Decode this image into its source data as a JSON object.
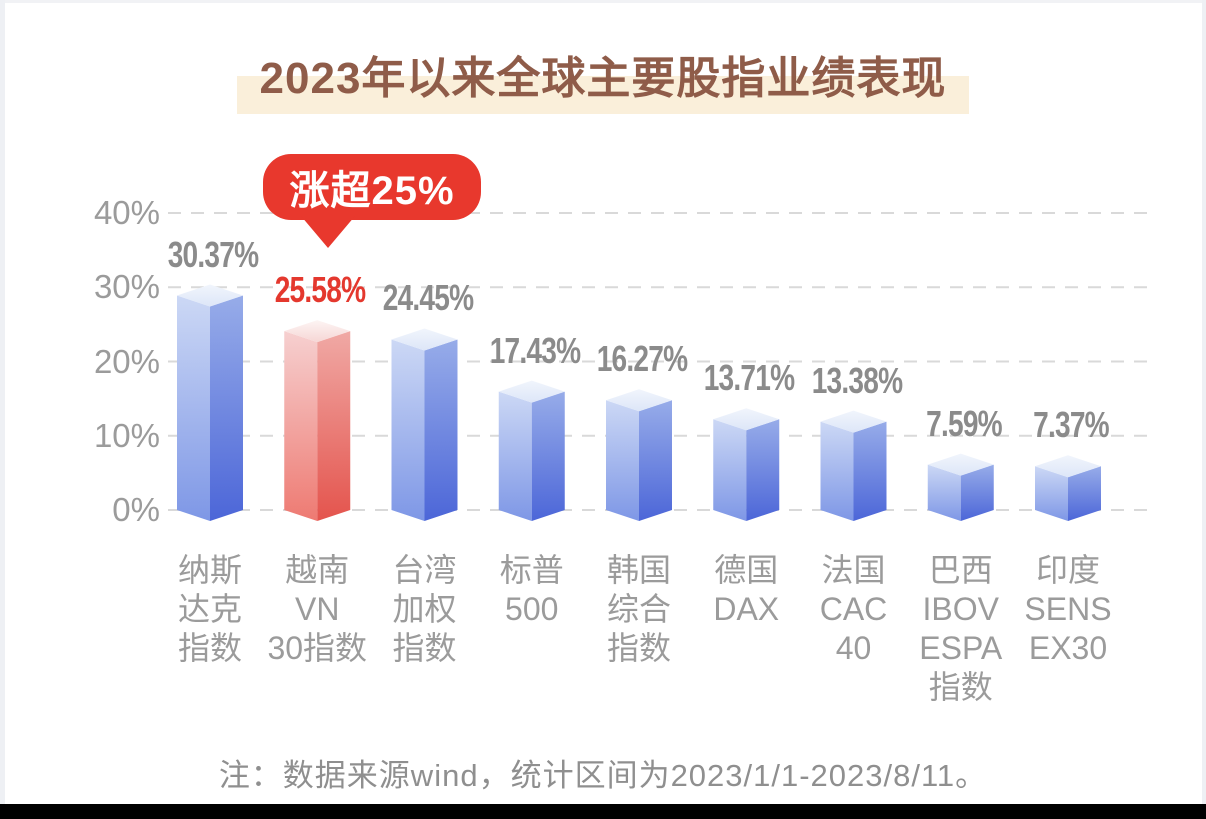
{
  "page": {
    "title": "2023年以来全球主要股指业绩表现",
    "callout": "涨超25%",
    "note": "注：数据来源wind，统计区间为2023/1/1-2023/8/11。"
  },
  "colors": {
    "title_text": "#8f5c49",
    "title_highlight": "#faefda",
    "callout_bg": "#e8382d",
    "highlight_value": "#e4382e",
    "value_label": "#8b8b8b",
    "axis_text": "#9b9b9b",
    "note_text": "#8f8f8f",
    "gridline": "#d9d9d9",
    "bar_blue": {
      "left": [
        "#ccd8f5",
        "#7e97e6"
      ],
      "right": [
        "#97ace9",
        "#4c66d8"
      ],
      "top": [
        "#f1f5fc",
        "#dde6f8"
      ]
    },
    "bar_red": {
      "left": [
        "#f6d0d0",
        "#ee7a72"
      ],
      "right": [
        "#f0a9a5",
        "#e4544d"
      ],
      "top": [
        "#fdf5f4",
        "#f6d6d5"
      ]
    }
  },
  "chart_data": {
    "type": "bar",
    "title": "2023年以来全球主要股指业绩表现",
    "categories": [
      "纳斯达克指数",
      "越南VN30指数",
      "台湾加权指数",
      "标普500",
      "韩国综合指数",
      "德国DAX",
      "法国CAC40",
      "巴西IBOVESPA指数",
      "印度SENSEX30"
    ],
    "category_display_lines": [
      [
        "纳斯",
        "达克",
        "指数"
      ],
      [
        "越南",
        "VN",
        "30指数"
      ],
      [
        "台湾",
        "加权",
        "指数"
      ],
      [
        "标普",
        "500"
      ],
      [
        "韩国",
        "综合",
        "指数"
      ],
      [
        "德国",
        "DAX"
      ],
      [
        "法国",
        "CAC",
        "40"
      ],
      [
        "巴西",
        "IBOV",
        "ESPA",
        "指数"
      ],
      [
        "印度",
        "SENS",
        "EX30"
      ]
    ],
    "values": [
      30.37,
      25.58,
      24.45,
      17.43,
      16.27,
      13.71,
      13.38,
      7.59,
      7.37
    ],
    "value_labels": [
      "30.37%",
      "25.58%",
      "24.45%",
      "17.43%",
      "16.27%",
      "13.71%",
      "13.38%",
      "7.59%",
      "7.37%"
    ],
    "highlight_index": 1,
    "annotation": {
      "text": "涨超25%",
      "target": "越南VN30指数"
    },
    "xlabel": "",
    "ylabel": "",
    "ylim": [
      0,
      40
    ],
    "yticks": [
      0,
      10,
      20,
      30,
      40
    ],
    "ytick_labels": [
      "0%",
      "10%",
      "20%",
      "30%",
      "40%"
    ],
    "grid": "horizontal-dashed",
    "legend": false,
    "bar_style": "3d-prism, blue gradient; highlighted bar red gradient"
  }
}
